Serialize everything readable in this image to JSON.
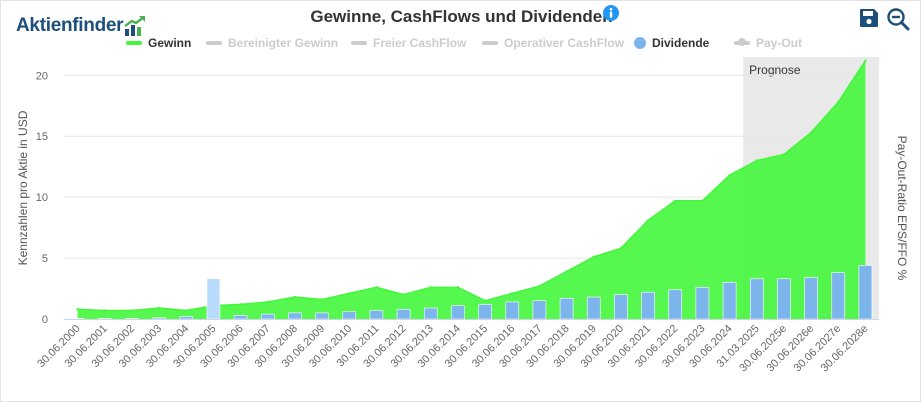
{
  "brand": {
    "name": "Aktienfinder"
  },
  "header": {
    "title": "Gewinne, CashFlows und Dividenden",
    "info_icon": "info-icon",
    "save_icon": "save-icon",
    "zoom_icon": "zoom-out-icon"
  },
  "colors": {
    "gewinn": "#44f63c",
    "dividende": "#7cb5ec",
    "dividende_highlight": "#b7dcfb",
    "disabled": "#cccccc",
    "prognose_band": "#e9e9e9",
    "brand": "#1d4f7d",
    "icon": "#1d4f7d"
  },
  "legend": [
    {
      "label": "Gewinn",
      "symbol": "line",
      "active": true
    },
    {
      "label": "Bereinigter Gewinn",
      "symbol": "line",
      "active": false
    },
    {
      "label": "Freier CashFlow",
      "symbol": "line",
      "active": false
    },
    {
      "label": "Operativer CashFlow",
      "symbol": "line",
      "active": false
    },
    {
      "label": "Dividende",
      "symbol": "dot",
      "active": true
    },
    {
      "label": "Pay-Out",
      "symbol": "line-dot",
      "active": false
    }
  ],
  "chart_data": {
    "type": "area",
    "ylabel": "Kennzahlen pro Aktie in USD",
    "y2label": "Pay-Out-Ratio EPS/FFO %",
    "ylim": [
      0,
      21.5
    ],
    "yticks": [
      "0",
      "5",
      "10",
      "15",
      "20"
    ],
    "grid": true,
    "legend_position": "top",
    "band": {
      "label": "Prognose",
      "from": "31.03.2025",
      "to": "30.06.2028e"
    },
    "categories": [
      "30.06.2000",
      "30.06.2001",
      "30.06.2002",
      "30.06.2003",
      "30.06.2004",
      "30.06.2005",
      "30.06.2006",
      "30.06.2007",
      "30.06.2008",
      "30.06.2009",
      "30.06.2010",
      "30.06.2011",
      "30.06.2012",
      "30.06.2013",
      "30.06.2014",
      "30.06.2015",
      "30.06.2016",
      "30.06.2017",
      "30.06.2018",
      "30.06.2019",
      "30.06.2020",
      "30.06.2021",
      "30.06.2022",
      "30.06.2023",
      "30.06.2024",
      "31.03.2025",
      "30.06.2025e",
      "30.06.2026e",
      "30.06.2027e",
      "30.06.2028e"
    ],
    "series": [
      {
        "name": "Gewinn",
        "type": "area",
        "values": [
          0.8,
          0.7,
          0.7,
          0.9,
          0.7,
          1.1,
          1.2,
          1.4,
          1.8,
          1.6,
          2.1,
          2.6,
          2.0,
          2.6,
          2.6,
          1.5,
          2.1,
          2.7,
          3.9,
          5.1,
          5.8,
          8.1,
          9.7,
          9.7,
          11.8,
          13.0,
          13.5,
          15.3,
          17.8,
          21.2
        ]
      },
      {
        "name": "Dividende",
        "type": "bar",
        "values": [
          0.0,
          0.0,
          0.0,
          0.1,
          0.2,
          3.3,
          0.3,
          0.4,
          0.5,
          0.5,
          0.6,
          0.7,
          0.8,
          0.9,
          1.1,
          1.2,
          1.4,
          1.5,
          1.7,
          1.8,
          2.0,
          2.2,
          2.4,
          2.6,
          3.0,
          3.3,
          3.3,
          3.4,
          3.8,
          4.4
        ]
      }
    ],
    "highlight_index": 5
  }
}
